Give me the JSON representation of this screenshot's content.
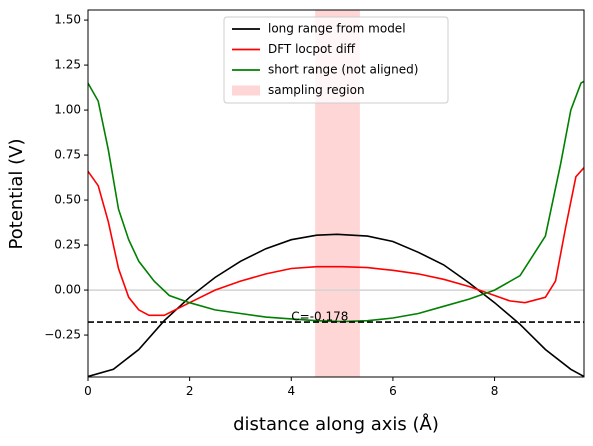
{
  "chart_data": {
    "type": "line",
    "xlabel": "distance along axis (Å)",
    "ylabel": "Potential (V)",
    "xlim": [
      0,
      9.76
    ],
    "ylim": [
      -0.483,
      1.556
    ],
    "xticks": [
      0,
      2,
      4,
      6,
      8
    ],
    "yticks": [
      {
        "value": -0.25,
        "label": "−0.25"
      },
      {
        "value": 0,
        "label": "0.00"
      },
      {
        "value": 0.25,
        "label": "0.25"
      },
      {
        "value": 0.5,
        "label": "0.50"
      },
      {
        "value": 0.75,
        "label": "0.75"
      },
      {
        "value": 1.0,
        "label": "1.00"
      },
      {
        "value": 1.25,
        "label": "1.25"
      },
      {
        "value": 1.5,
        "label": "1.50"
      }
    ],
    "legend": "upper center",
    "series": [
      {
        "name": "long range from model",
        "color": "#000000",
        "x": [
          0,
          0.5,
          1,
          1.5,
          2,
          2.5,
          3,
          3.5,
          4,
          4.5,
          4.9,
          5.5,
          6,
          6.5,
          7,
          7.5,
          8,
          8.5,
          9,
          9.5,
          9.76
        ],
        "values": [
          -0.48,
          -0.44,
          -0.33,
          -0.17,
          -0.04,
          0.07,
          0.16,
          0.23,
          0.28,
          0.305,
          0.31,
          0.3,
          0.27,
          0.21,
          0.14,
          0.04,
          -0.07,
          -0.19,
          -0.33,
          -0.44,
          -0.48
        ]
      },
      {
        "name": "DFT locpot diff",
        "color": "#ff0000",
        "x": [
          0,
          0.2,
          0.4,
          0.6,
          0.8,
          1.0,
          1.2,
          1.5,
          2,
          2.5,
          3,
          3.5,
          4,
          4.5,
          5,
          5.5,
          6,
          6.5,
          7,
          7.5,
          8,
          8.3,
          8.6,
          9,
          9.2,
          9.4,
          9.6,
          9.76
        ],
        "values": [
          0.66,
          0.58,
          0.38,
          0.12,
          -0.04,
          -0.11,
          -0.14,
          -0.14,
          -0.07,
          0.0,
          0.05,
          0.09,
          0.12,
          0.13,
          0.13,
          0.125,
          0.11,
          0.09,
          0.06,
          0.02,
          -0.03,
          -0.06,
          -0.07,
          -0.04,
          0.05,
          0.35,
          0.63,
          0.68
        ]
      },
      {
        "name": "short range (not aligned)",
        "color": "#008000",
        "x": [
          0,
          0.2,
          0.4,
          0.6,
          0.8,
          1.0,
          1.3,
          1.6,
          2,
          2.5,
          3,
          3.5,
          4,
          4.5,
          5,
          5.5,
          6,
          6.5,
          7,
          7.5,
          8,
          8.5,
          9,
          9.3,
          9.5,
          9.7,
          9.76
        ],
        "values": [
          1.15,
          1.05,
          0.78,
          0.45,
          0.28,
          0.16,
          0.05,
          -0.03,
          -0.07,
          -0.11,
          -0.13,
          -0.15,
          -0.16,
          -0.17,
          -0.175,
          -0.17,
          -0.155,
          -0.13,
          -0.09,
          -0.05,
          0.0,
          0.08,
          0.3,
          0.7,
          1.0,
          1.15,
          1.16
        ]
      }
    ],
    "sampling_region": {
      "name": "sampling region",
      "color": "#ffd6d6",
      "xrange": [
        4.47,
        5.35
      ]
    },
    "zero_line": {
      "value": 0,
      "color": "#d3d3d3"
    },
    "hline": {
      "value": -0.178,
      "color": "#000000"
    },
    "annotation": {
      "text": "C=-0.178",
      "x": 4.0,
      "y": -0.15
    }
  }
}
